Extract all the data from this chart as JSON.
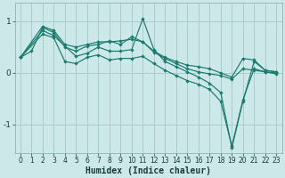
{
  "xlabel": "Humidex (Indice chaleur)",
  "bg_color": "#cce8e8",
  "grid_color": "#aacccc",
  "line_color": "#1a7a6e",
  "xlim": [
    -0.5,
    23.5
  ],
  "ylim": [
    -1.55,
    1.35
  ],
  "yticks": [
    -1,
    0,
    1
  ],
  "xticks": [
    0,
    1,
    2,
    3,
    4,
    5,
    6,
    7,
    8,
    9,
    10,
    11,
    12,
    13,
    14,
    15,
    16,
    17,
    18,
    19,
    20,
    21,
    22,
    23
  ],
  "series": [
    {
      "x": [
        0,
        2,
        3,
        4,
        5,
        6,
        7,
        8,
        9,
        10,
        11,
        12,
        13,
        14,
        15,
        16,
        17,
        18,
        19,
        20,
        21,
        22,
        23
      ],
      "y": [
        0.3,
        0.9,
        0.82,
        0.55,
        0.5,
        0.55,
        0.6,
        0.6,
        0.62,
        0.65,
        0.6,
        0.42,
        0.3,
        0.22,
        0.15,
        0.12,
        0.08,
        0.0,
        -0.08,
        0.28,
        0.25,
        0.05,
        0.02
      ]
    },
    {
      "x": [
        0,
        2,
        3,
        5,
        6,
        7,
        8,
        9,
        10,
        11,
        12,
        13,
        14,
        15,
        16,
        17,
        18,
        19,
        20,
        21,
        22,
        23
      ],
      "y": [
        0.3,
        0.82,
        0.72,
        0.32,
        0.38,
        0.5,
        0.42,
        0.42,
        0.45,
        1.05,
        0.45,
        0.22,
        0.12,
        0.02,
        -0.08,
        -0.2,
        -0.38,
        -1.45,
        -0.55,
        0.22,
        0.05,
        0.02
      ]
    },
    {
      "x": [
        0,
        2,
        3,
        4,
        5,
        6,
        7,
        8,
        9,
        10,
        11,
        12,
        13,
        14,
        15,
        16,
        17,
        18,
        19,
        20,
        21,
        22,
        23
      ],
      "y": [
        0.3,
        0.75,
        0.68,
        0.22,
        0.18,
        0.3,
        0.35,
        0.25,
        0.28,
        0.28,
        0.32,
        0.18,
        0.05,
        -0.05,
        -0.15,
        -0.22,
        -0.32,
        -0.55,
        -1.42,
        -0.52,
        0.08,
        0.02,
        -0.02
      ]
    },
    {
      "x": [
        0,
        1,
        2,
        3,
        4,
        5,
        6,
        7,
        8,
        9,
        10,
        11,
        12,
        13,
        14,
        15,
        16,
        17,
        18,
        19,
        20,
        21,
        22,
        23
      ],
      "y": [
        0.3,
        0.42,
        0.88,
        0.78,
        0.5,
        0.42,
        0.52,
        0.55,
        0.62,
        0.55,
        0.7,
        0.6,
        0.4,
        0.28,
        0.18,
        0.08,
        0.02,
        -0.02,
        -0.05,
        -0.12,
        0.08,
        0.05,
        0.02,
        0.0
      ]
    }
  ]
}
